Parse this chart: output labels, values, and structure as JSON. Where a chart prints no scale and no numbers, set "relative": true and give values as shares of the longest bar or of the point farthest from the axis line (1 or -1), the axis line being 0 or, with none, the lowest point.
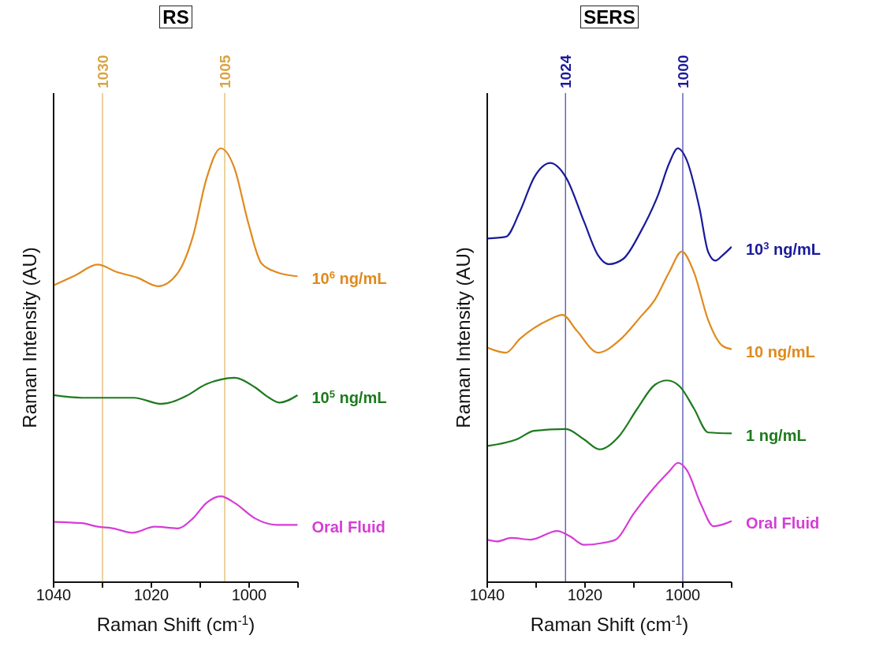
{
  "chart_data": [
    {
      "type": "line",
      "title": "RS",
      "xlabel": "Raman Shift (cm$^{-1}$)",
      "ylabel": "Raman Intensity (AU)",
      "relative": true,
      "xlim": [
        1040,
        990
      ],
      "xticks": [
        1040,
        {
          "value": 1030,
          "label": null
        },
        1020,
        {
          "value": 1010,
          "label": null
        },
        1000,
        {
          "value": 990,
          "label": null
        }
      ],
      "series": [
        {
          "name": "10$^{6}$ ng/mL",
          "color": "#e08a1e",
          "x": [
            1040,
            1035.6,
            1031.0,
            1027.1,
            1022.9,
            1018.6,
            1014.7,
            1011.5,
            1008.7,
            1005.8,
            1003.0,
            1000.2,
            997.5,
            994.5,
            990.1
          ],
          "values": [
            0.684,
            0.707,
            0.732,
            0.715,
            0.702,
            0.682,
            0.711,
            0.797,
            0.931,
            1.0,
            0.954,
            0.829,
            0.735,
            0.715,
            0.705
          ]
        },
        {
          "name": "10$^{5}$ ng/mL",
          "color": "#1e7a1e",
          "x": [
            1040,
            1034.2,
            1023.6,
            1017.9,
            1012.9,
            1008.7,
            1005.8,
            1003.0,
            998.8,
            995.9,
            993.8,
            990.1
          ],
          "values": [
            0.431,
            0.425,
            0.425,
            0.411,
            0.429,
            0.457,
            0.467,
            0.471,
            0.449,
            0.425,
            0.414,
            0.431
          ]
        },
        {
          "name": "Oral Fluid",
          "color": "#d63cd6",
          "x": [
            1040,
            1034.2,
            1031.0,
            1027.8,
            1023.9,
            1019.3,
            1014.7,
            1011.5,
            1008.7,
            1005.8,
            1003.0,
            998.8,
            994.5,
            990.1
          ],
          "values": [
            0.139,
            0.136,
            0.128,
            0.124,
            0.114,
            0.128,
            0.124,
            0.147,
            0.183,
            0.198,
            0.183,
            0.147,
            0.132,
            0.132
          ]
        }
      ],
      "ref_lines": [
        {
          "axis": "x",
          "value": 1030,
          "label": "1030",
          "color": "#d9a441"
        },
        {
          "axis": "x",
          "value": 1005,
          "label": "1005",
          "color": "#d9a441"
        }
      ]
    },
    {
      "type": "line",
      "title": "SERS",
      "xlabel": "Raman Shift (cm$^{-1}$)",
      "ylabel": "Raman Intensity (AU)",
      "relative": true,
      "xlim": [
        1040,
        990
      ],
      "xticks": [
        1040,
        {
          "value": 1030,
          "label": null
        },
        1020,
        {
          "value": 1010,
          "label": null
        },
        1000,
        {
          "value": 990,
          "label": null
        }
      ],
      "series": [
        {
          "name": "10$^{3}$ ng/mL",
          "color": "#1a1a9a",
          "x": [
            1040,
            1036.2,
            1033.3,
            1030.4,
            1027.1,
            1023.9,
            1020.2,
            1017.3,
            1015.1,
            1012.2,
            1008.6,
            1005.0,
            1002.8,
            1001.0,
            999.2,
            996.6,
            994.8,
            993.3,
            991.9,
            990
          ],
          "values": [
            0.792,
            0.796,
            0.855,
            0.933,
            0.966,
            0.933,
            0.831,
            0.753,
            0.733,
            0.745,
            0.808,
            0.894,
            0.965,
            1.0,
            0.973,
            0.863,
            0.761,
            0.741,
            0.753,
            0.773
          ]
        },
        {
          "name": "10 ng/mL",
          "color": "#e08a1e",
          "x": [
            1040,
            1036.2,
            1033.3,
            1027.5,
            1024.6,
            1021.7,
            1017.3,
            1013.0,
            1008.6,
            1005.7,
            1002.8,
            1000.2,
            997.7,
            994.8,
            991.9,
            990
          ],
          "values": [
            0.541,
            0.529,
            0.561,
            0.604,
            0.616,
            0.58,
            0.529,
            0.557,
            0.612,
            0.651,
            0.714,
            0.762,
            0.714,
            0.604,
            0.545,
            0.537
          ]
        },
        {
          "name": "1 ng/mL",
          "color": "#1e7a1e",
          "x": [
            1040,
            1034.0,
            1030.4,
            1023.9,
            1020.2,
            1017.0,
            1013.0,
            1009.3,
            1005.7,
            1003.2,
            1000.6,
            997.7,
            994.8,
            990
          ],
          "values": [
            0.314,
            0.329,
            0.349,
            0.353,
            0.329,
            0.306,
            0.337,
            0.4,
            0.455,
            0.465,
            0.451,
            0.4,
            0.345,
            0.343
          ]
        },
        {
          "name": "Oral Fluid",
          "color": "#d63cd6",
          "x": [
            1040,
            1038.0,
            1035.1,
            1031.1,
            1025.7,
            1023.1,
            1020.2,
            1016.6,
            1013.7,
            1010.1,
            1005.7,
            1002.8,
            1001.0,
            999.2,
            996.3,
            993.7,
            990
          ],
          "values": [
            0.098,
            0.094,
            0.102,
            0.098,
            0.118,
            0.106,
            0.086,
            0.09,
            0.098,
            0.157,
            0.22,
            0.255,
            0.275,
            0.259,
            0.18,
            0.129,
            0.141
          ]
        }
      ],
      "ref_lines": [
        {
          "axis": "x",
          "value": 1024,
          "label": "1024",
          "color": "#1a1a9a"
        },
        {
          "axis": "x",
          "value": 1000,
          "label": "1000",
          "color": "#1a1a9a"
        }
      ]
    }
  ]
}
